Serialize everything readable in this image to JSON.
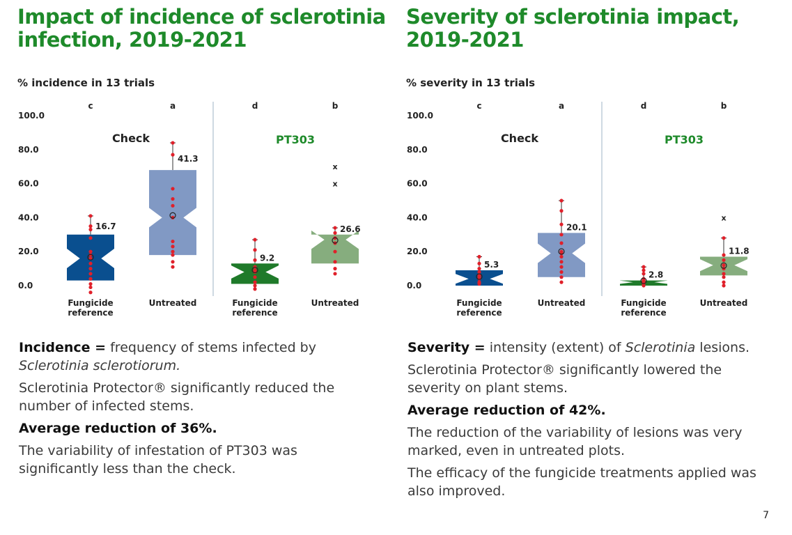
{
  "left": {
    "title": "Impact of incidence of sclerotinia infection, 2019-2021",
    "subtitle": "% incidence in 13 trials",
    "body": {
      "p1_bold": "Incidence =",
      "p1_text": " frequency of stems infected by ",
      "p1_italic": "Sclerotinia sclerotiorum.",
      "p2": "Sclerotinia Protector® significantly reduced the number of infected stems.",
      "p3_bold": "Average reduction of 36%.",
      "p4": "The variability of infestation of PT303 was significantly less than the check."
    }
  },
  "right": {
    "title": "Severity of sclerotinia impact, 2019-2021",
    "subtitle": "% severity in 13 trials",
    "body": {
      "p1_bold": "Severity =",
      "p1_text": " intensity (extent) of ",
      "p1_italic": "Sclerotinia",
      "p1_end": " lesions.",
      "p2": "Sclerotinia Protector® significantly lowered the severity on plant stems.",
      "p3_bold": "Average reduction of 42%.",
      "p4": "The reduction of the variability of lesions was very marked, even in untreated plots.",
      "p5": "The efficacy of the fungicide treatments applied was also improved."
    }
  },
  "page_number": "7",
  "colors": {
    "title": "#1e8a2a",
    "check_fungicide": "#0a4f8f",
    "check_untreated": "#8199c4",
    "pt_fungicide": "#1f7a2a",
    "pt_untreated": "#86ad7e",
    "dot": "#e0202a"
  },
  "chart_data": [
    {
      "type": "boxplot",
      "ylim": [
        0,
        100
      ],
      "yticks": [
        "100.0",
        "80.0",
        "60.0",
        "40.0",
        "20.0",
        "0.0"
      ],
      "groups": [
        "Check",
        "PT303"
      ],
      "boxes": [
        {
          "label": "Fungicide reference",
          "group": "Check",
          "letter": "c",
          "mean_label": "16.7",
          "mean": 16.7,
          "q1": 3,
          "median": 16,
          "q3": 30,
          "whisker_high": 41,
          "outliers": [],
          "points": [
            -4,
            -1,
            1,
            4,
            7,
            10,
            13,
            16,
            18,
            20,
            28,
            33,
            35,
            41
          ]
        },
        {
          "label": "Untreated",
          "group": "Check",
          "letter": "a",
          "mean_label": "41.3",
          "mean": 41.3,
          "q1": 18,
          "median": 40,
          "q3": 68,
          "whisker_high": 84,
          "outliers": [],
          "points": [
            11,
            14,
            18,
            20,
            23,
            26,
            40,
            47,
            51,
            57,
            77,
            84
          ]
        },
        {
          "label": "Fungicide reference",
          "group": "PT303",
          "letter": "d",
          "mean_label": "9.2",
          "mean": 9.2,
          "q1": 1,
          "median": 8,
          "q3": 13,
          "whisker_high": 27,
          "outliers": [],
          "points": [
            -2,
            0,
            2,
            5,
            8,
            9,
            11,
            15,
            21,
            27
          ]
        },
        {
          "label": "Untreated",
          "group": "PT303",
          "letter": "b",
          "mean_label": "26.6",
          "mean": 26.6,
          "q1": 13,
          "median": 27,
          "q3": 30,
          "whisker_high": 34,
          "outliers": [
            60,
            70
          ],
          "points": [
            7,
            10,
            14,
            20,
            25,
            28,
            31,
            34
          ]
        }
      ]
    },
    {
      "type": "boxplot",
      "ylim": [
        0,
        100
      ],
      "yticks": [
        "100.0",
        "80.0",
        "60.0",
        "40.0",
        "20.0",
        "0.0"
      ],
      "groups": [
        "Check",
        "PT303"
      ],
      "boxes": [
        {
          "label": "Fungicide reference",
          "group": "Check",
          "letter": "c",
          "mean_label": "5.3",
          "mean": 5.3,
          "q1": 0,
          "median": 4,
          "q3": 9,
          "whisker_high": 17,
          "outliers": [],
          "points": [
            1,
            2,
            4,
            5,
            6,
            8,
            10,
            13,
            17
          ]
        },
        {
          "label": "Untreated",
          "group": "Check",
          "letter": "a",
          "mean_label": "20.1",
          "mean": 20.1,
          "q1": 5,
          "median": 19,
          "q3": 31,
          "whisker_high": 50,
          "outliers": [],
          "points": [
            2,
            5,
            8,
            11,
            14,
            17,
            19,
            20,
            25,
            30,
            36,
            44,
            50
          ]
        },
        {
          "label": "Fungicide reference",
          "group": "PT303",
          "letter": "d",
          "mean_label": "2.8",
          "mean": 2.8,
          "q1": 0,
          "median": 2,
          "q3": 3,
          "whisker_high": 11,
          "outliers": [],
          "points": [
            0,
            1,
            2,
            3,
            4,
            7,
            9,
            11
          ]
        },
        {
          "label": "Untreated",
          "group": "PT303",
          "letter": "b",
          "mean_label": "11.8",
          "mean": 11.8,
          "q1": 6,
          "median": 12,
          "q3": 17,
          "whisker_high": 28,
          "outliers": [
            40
          ],
          "points": [
            0,
            2,
            5,
            7,
            10,
            12,
            15,
            18,
            28
          ]
        }
      ]
    }
  ]
}
